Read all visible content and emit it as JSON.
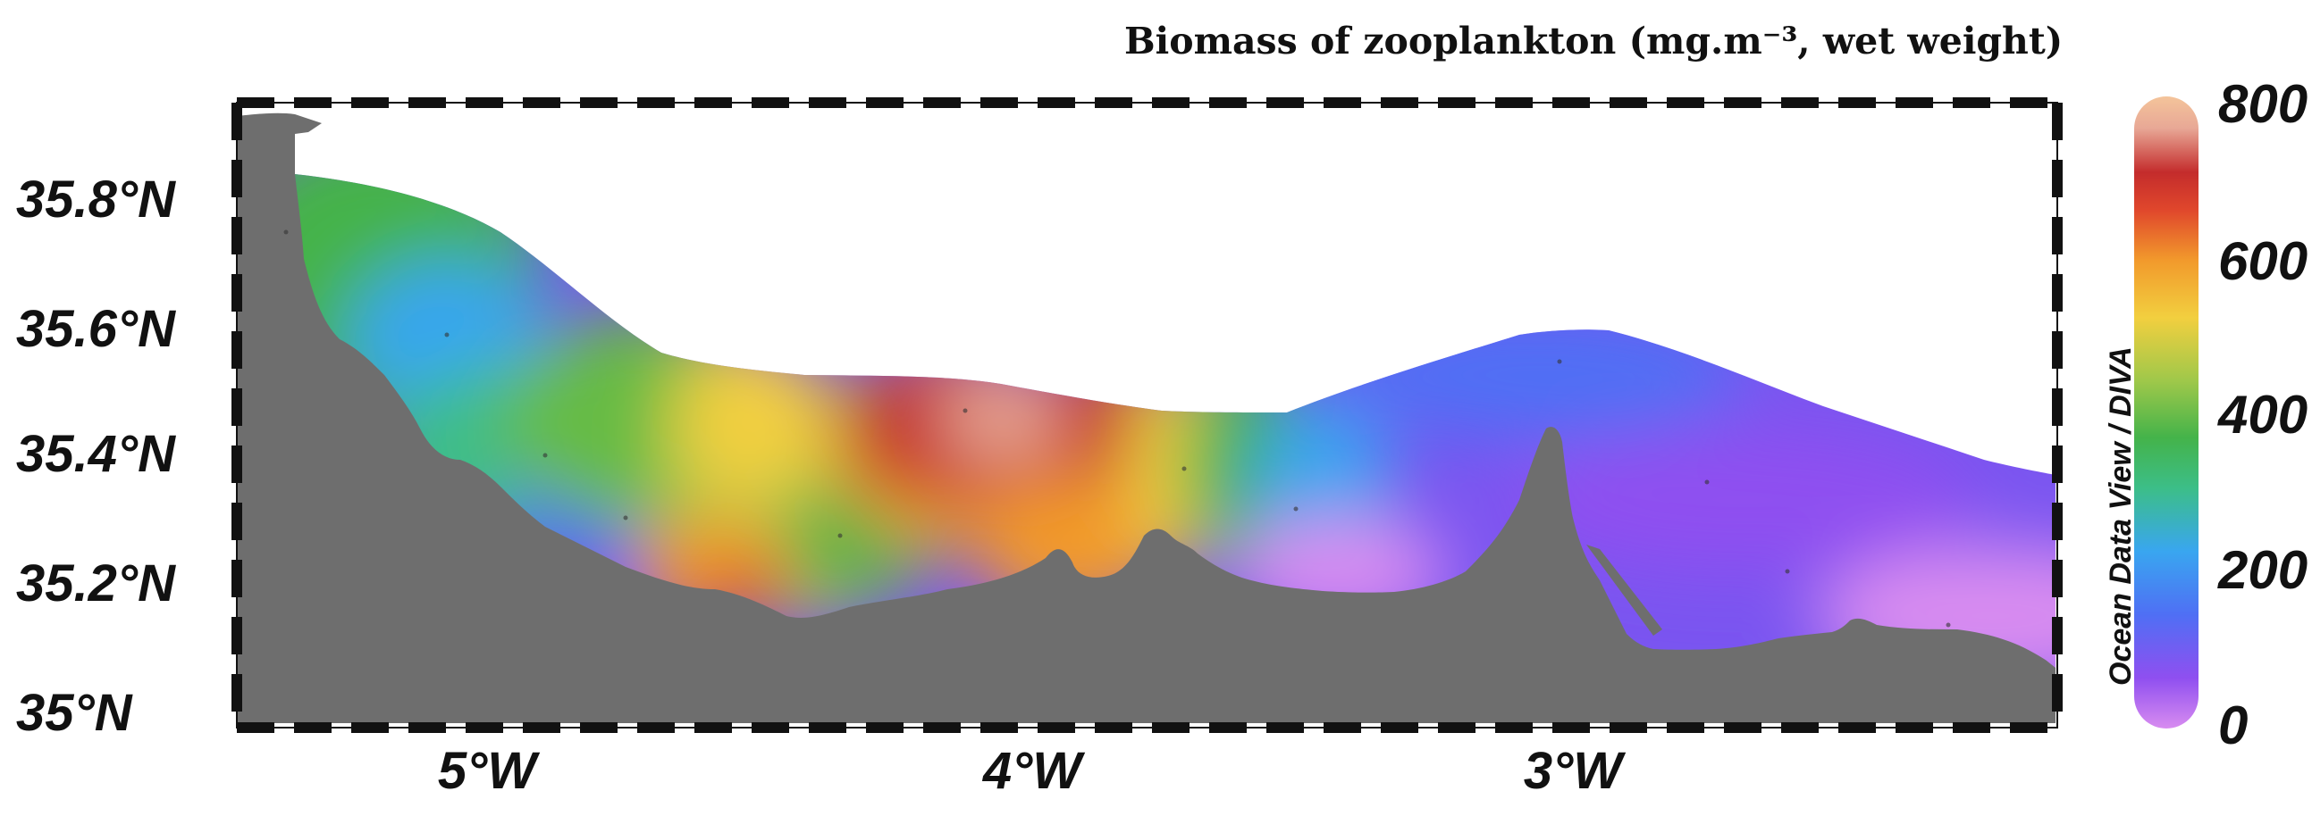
{
  "title": "Biomass of zooplankton (mg.m⁻³, wet weight)",
  "credit": "Ocean Data View / DIVA",
  "latitude_labels": [
    "35.8°N",
    "35.6°N",
    "35.4°N",
    "35.2°N",
    "35°N"
  ],
  "longitude_labels": [
    "5°W",
    "4°W",
    "3°W"
  ],
  "colorbar": {
    "labels": [
      "800",
      "600",
      "400",
      "200",
      "0"
    ],
    "min": 0,
    "max": 800,
    "stops": [
      "#d88cf0",
      "#8f4ff0",
      "#4f6ff4",
      "#39a6f0",
      "#3cbe88",
      "#44b34a",
      "#9fc84a",
      "#f2cf3f",
      "#f29a2c",
      "#e0472c",
      "#c42c2c",
      "#e8a896",
      "#f4c49a"
    ]
  },
  "colors": {
    "land": "#6e6e6e",
    "frame": "#111111",
    "no_data": "#ffffff"
  }
}
